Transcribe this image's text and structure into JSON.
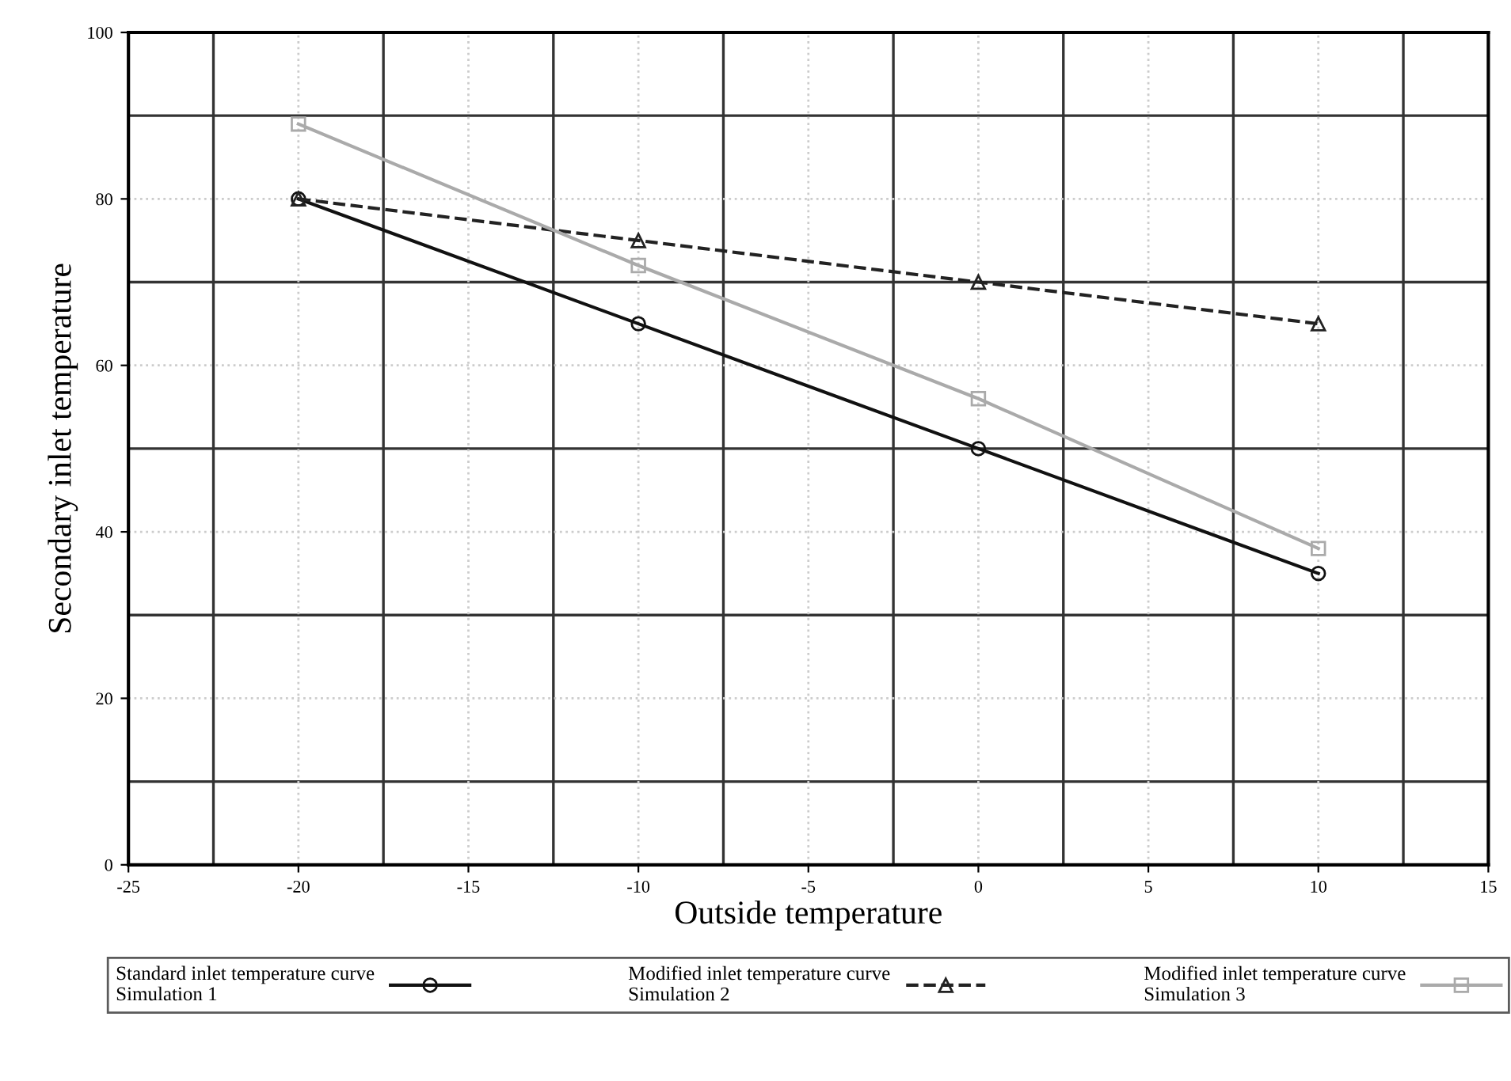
{
  "chart_data": {
    "type": "line",
    "xlabel": "Outside temperature",
    "ylabel": "Secondary inlet temperature",
    "x": [
      -20,
      -10,
      0,
      10
    ],
    "series": [
      {
        "name": "Standard inlet temperature curve\nSimulation 1",
        "color": "#111111",
        "values": [
          80,
          65,
          50,
          35
        ],
        "marker": "circle",
        "line_style": "solid"
      },
      {
        "name": "Modified inlet temperature curve\nSimulation 2",
        "color": "#222222",
        "values": [
          80,
          75,
          70,
          65
        ],
        "marker": "triangle",
        "line_style": "dashed"
      },
      {
        "name": "Modified inlet temperature curve\nSimulation 3",
        "color": "#aaaaaa",
        "values": [
          89,
          72,
          56,
          38
        ],
        "marker": "square",
        "line_style": "solid"
      }
    ],
    "xlim": [
      -25,
      15
    ],
    "xticks": [
      -25,
      -20,
      -15,
      -10,
      -5,
      0,
      5,
      10,
      15
    ],
    "ylim": [
      0,
      100
    ],
    "yticks": [
      0,
      20,
      40,
      60,
      80,
      100
    ],
    "grid": true,
    "legend": "bottom"
  }
}
